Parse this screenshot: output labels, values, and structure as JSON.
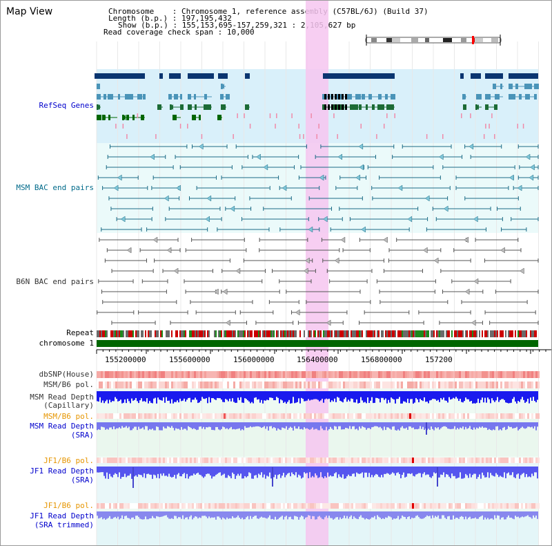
{
  "app_title": "Map View",
  "header": {
    "chromosome_key": "Chromosome",
    "chromosome_value": "Chromosome 1, reference assembly (C57BL/6J) (Build 37)",
    "length_key": "Length (b.p.)",
    "length_value": "197,195,432",
    "show_key": "Show (b.p.)",
    "show_value": "155,153,695-157,259,321 : 2,105,627 bp",
    "coverage_key": "Read coverage check span",
    "coverage_value": "10,000"
  },
  "tracks": {
    "refseq": "RefSeq Genes",
    "msm_bac": "MSM BAC end pairs",
    "b6n_bac": "B6N BAC end pairs",
    "repeat": "Repeat",
    "chromosome": "chromosome 1",
    "dbsnp": "dbSNP(House)",
    "msm_b6_pol_1": "MSM/B6 pol.",
    "msm_read_depth_cap_1": "MSM Read Depth",
    "msm_read_depth_cap_2": "(Capillary)",
    "msm_b6_pol_2": "MSM/B6 pol.",
    "msm_read_depth_sra_1": "MSM Read Depth",
    "msm_read_depth_sra_2": "(SRA)",
    "jf1_b6_pol_1": "JF1/B6 pol.",
    "jf1_read_depth_sra_1": "JF1 Read Depth",
    "jf1_read_depth_sra_2": "(SRA)",
    "jf1_b6_pol_2": "JF1/B6 pol.",
    "jf1_read_depth_trim_1": "JF1 Read Depth",
    "jf1_read_depth_trim_2": "(SRA trimmed)"
  },
  "axis": {
    "ticks": [
      "155200000",
      "155600000",
      "156000000",
      "156400000",
      "156800000",
      "157200"
    ]
  },
  "colors": {
    "refseq_label": "#0000cc",
    "msm_label": "#006a8a",
    "b6n_label": "#333333",
    "pol_orange": "#e69500",
    "depth_blue": "#0000cc",
    "highlight": "#f6c6f0",
    "refseq_bg": "#d9f0fa",
    "msm_bg": "#ebfafa"
  }
}
